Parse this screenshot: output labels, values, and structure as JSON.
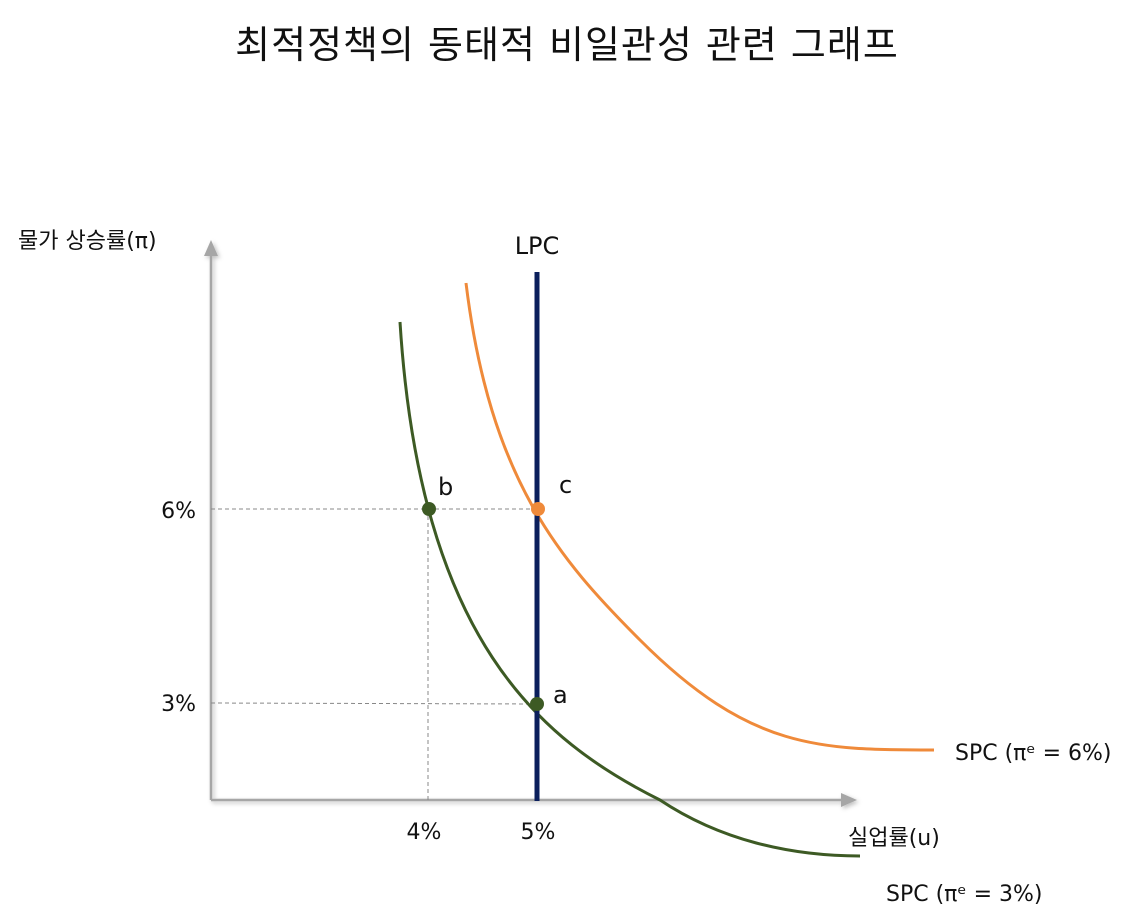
{
  "title": "최적정책의 동태적 비일관성 관련 그래프",
  "axes": {
    "y_label": "물가 상승률(π)",
    "x_label": "실업률(u)"
  },
  "ticks": {
    "y": [
      {
        "value": 6,
        "label": "6%"
      },
      {
        "value": 3,
        "label": "3%"
      }
    ],
    "x": [
      {
        "value": 4,
        "label": "4%"
      },
      {
        "value": 5,
        "label": "5%"
      }
    ]
  },
  "curves": {
    "lpc": {
      "label": "LPC",
      "color": "#0b1f5c"
    },
    "spc_high": {
      "label": "SPC (πᵉ = 6%)",
      "color": "#ef8a3a"
    },
    "spc_low": {
      "label": "SPC (πᵉ = 3%)",
      "color": "#3d5a24"
    }
  },
  "points": [
    {
      "id": "a",
      "label": "a",
      "u": 5,
      "pi": 3,
      "color": "#3d5a24"
    },
    {
      "id": "b",
      "label": "b",
      "u": 4,
      "pi": 6,
      "color": "#3d5a24"
    },
    {
      "id": "c",
      "label": "c",
      "u": 5,
      "pi": 6,
      "color": "#ef8a3a"
    }
  ],
  "axis_color": "#a6a6a6",
  "guide_color": "#888888"
}
